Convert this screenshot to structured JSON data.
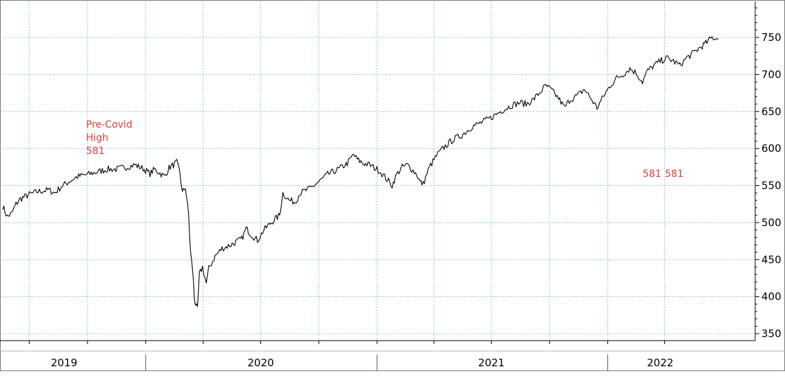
{
  "chart_data": {
    "type": "line",
    "title": "",
    "xlabel": "",
    "ylabel": "",
    "x_range": [
      "2019-05-20",
      "2022-06-25"
    ],
    "ylim": [
      335,
      795
    ],
    "y_ticks": [
      350,
      400,
      450,
      500,
      550,
      600,
      650,
      700,
      750
    ],
    "x_year_labels": [
      {
        "label": "2019",
        "date": "2019-08-25"
      },
      {
        "label": "2020",
        "date": "2020-07-01"
      },
      {
        "label": "2021",
        "date": "2021-07-01"
      },
      {
        "label": "2022",
        "date": "2022-03-25"
      }
    ],
    "x_year_boundaries": [
      "2020-01-01",
      "2021-01-01",
      "2022-01-01"
    ],
    "x_quarter_ticks": [
      "2019-07-01",
      "2019-10-01",
      "2020-01-01",
      "2020-04-01",
      "2020-07-01",
      "2020-10-01",
      "2021-01-01",
      "2021-04-01",
      "2021-07-01",
      "2021-10-01",
      "2022-01-01",
      "2022-04-01"
    ],
    "x_grid": [
      "2019-07-01",
      "2019-10-01",
      "2020-01-01",
      "2020-04-01",
      "2020-07-01",
      "2020-10-01",
      "2021-01-01",
      "2021-04-01",
      "2021-07-01",
      "2021-10-01",
      "2022-01-01",
      "2022-04-01"
    ],
    "grid": true,
    "colors": {
      "line": "#000000",
      "annotation": "#e03c3c",
      "grid": "#8fc3d8",
      "axis": "#000000"
    },
    "series": [
      {
        "name": "",
        "points": [
          [
            "2019-05-20",
            522
          ],
          [
            "2019-05-27",
            508
          ],
          [
            "2019-06-03",
            512
          ],
          [
            "2019-06-10",
            525
          ],
          [
            "2019-06-17",
            532
          ],
          [
            "2019-06-24",
            535
          ],
          [
            "2019-07-01",
            538
          ],
          [
            "2019-07-15",
            542
          ],
          [
            "2019-08-01",
            544
          ],
          [
            "2019-08-10",
            540
          ],
          [
            "2019-08-20",
            548
          ],
          [
            "2019-09-01",
            555
          ],
          [
            "2019-09-15",
            562
          ],
          [
            "2019-10-01",
            565
          ],
          [
            "2019-10-15",
            568
          ],
          [
            "2019-11-01",
            572
          ],
          [
            "2019-11-15",
            572
          ],
          [
            "2019-12-01",
            575
          ],
          [
            "2019-12-15",
            578
          ],
          [
            "2019-12-28",
            573
          ],
          [
            "2020-01-08",
            566
          ],
          [
            "2020-01-15",
            572
          ],
          [
            "2020-01-22",
            568
          ],
          [
            "2020-01-31",
            562
          ],
          [
            "2020-02-07",
            574
          ],
          [
            "2020-02-14",
            578
          ],
          [
            "2020-02-19",
            581
          ],
          [
            "2020-02-24",
            570
          ],
          [
            "2020-02-28",
            540
          ],
          [
            "2020-03-04",
            548
          ],
          [
            "2020-03-09",
            510
          ],
          [
            "2020-03-12",
            460
          ],
          [
            "2020-03-16",
            430
          ],
          [
            "2020-03-18",
            398
          ],
          [
            "2020-03-20",
            390
          ],
          [
            "2020-03-23",
            382
          ],
          [
            "2020-03-26",
            430
          ],
          [
            "2020-03-31",
            440
          ],
          [
            "2020-04-06",
            418
          ],
          [
            "2020-04-10",
            438
          ],
          [
            "2020-04-20",
            455
          ],
          [
            "2020-05-01",
            465
          ],
          [
            "2020-05-15",
            470
          ],
          [
            "2020-06-01",
            478
          ],
          [
            "2020-06-08",
            492
          ],
          [
            "2020-06-15",
            485
          ],
          [
            "2020-06-26",
            476
          ],
          [
            "2020-07-06",
            490
          ],
          [
            "2020-07-20",
            502
          ],
          [
            "2020-07-31",
            510
          ],
          [
            "2020-08-05",
            540
          ],
          [
            "2020-08-15",
            530
          ],
          [
            "2020-08-25",
            528
          ],
          [
            "2020-09-01",
            540
          ],
          [
            "2020-09-15",
            545
          ],
          [
            "2020-10-01",
            555
          ],
          [
            "2020-10-15",
            565
          ],
          [
            "2020-11-01",
            572
          ],
          [
            "2020-11-15",
            580
          ],
          [
            "2020-11-25",
            592
          ],
          [
            "2020-12-01",
            585
          ],
          [
            "2020-12-10",
            580
          ],
          [
            "2020-12-20",
            578
          ],
          [
            "2021-01-05",
            570
          ],
          [
            "2021-01-15",
            560
          ],
          [
            "2021-01-25",
            550
          ],
          [
            "2021-02-01",
            565
          ],
          [
            "2021-02-10",
            575
          ],
          [
            "2021-02-18",
            578
          ],
          [
            "2021-02-25",
            572
          ],
          [
            "2021-03-05",
            565
          ],
          [
            "2021-03-10",
            555
          ],
          [
            "2021-03-15",
            552
          ],
          [
            "2021-03-25",
            575
          ],
          [
            "2021-04-05",
            590
          ],
          [
            "2021-04-15",
            600
          ],
          [
            "2021-05-01",
            612
          ],
          [
            "2021-05-15",
            618
          ],
          [
            "2021-06-01",
            630
          ],
          [
            "2021-06-15",
            635
          ],
          [
            "2021-07-01",
            642
          ],
          [
            "2021-07-15",
            650
          ],
          [
            "2021-08-01",
            658
          ],
          [
            "2021-08-15",
            662
          ],
          [
            "2021-08-25",
            660
          ],
          [
            "2021-09-05",
            666
          ],
          [
            "2021-09-15",
            675
          ],
          [
            "2021-09-25",
            685
          ],
          [
            "2021-10-05",
            678
          ],
          [
            "2021-10-15",
            668
          ],
          [
            "2021-10-25",
            655
          ],
          [
            "2021-11-01",
            665
          ],
          [
            "2021-11-15",
            672
          ],
          [
            "2021-11-25",
            680
          ],
          [
            "2021-12-05",
            668
          ],
          [
            "2021-12-15",
            655
          ],
          [
            "2021-12-25",
            670
          ],
          [
            "2022-01-05",
            685
          ],
          [
            "2022-01-15",
            695
          ],
          [
            "2022-01-25",
            700
          ],
          [
            "2022-02-05",
            708
          ],
          [
            "2022-02-15",
            702
          ],
          [
            "2022-02-25",
            690
          ],
          [
            "2022-03-05",
            705
          ],
          [
            "2022-03-15",
            712
          ],
          [
            "2022-03-25",
            718
          ],
          [
            "2022-04-05",
            722
          ],
          [
            "2022-04-15",
            718
          ],
          [
            "2022-04-25",
            712
          ],
          [
            "2022-05-05",
            722
          ],
          [
            "2022-05-15",
            728
          ],
          [
            "2022-05-25",
            735
          ],
          [
            "2022-06-05",
            742
          ],
          [
            "2022-06-15",
            750
          ],
          [
            "2022-06-25",
            748
          ]
        ]
      }
    ],
    "annotations": [
      {
        "lines": [
          "Pre-Covid",
          "High",
          "581"
        ],
        "date": "2020-02-19",
        "value": 581
      },
      {
        "lines": [
          "581"
        ],
        "date": "2022-01-27",
        "value": 581
      },
      {
        "lines": [
          "581"
        ],
        "date": "2022-03-08",
        "value": 581
      }
    ]
  }
}
